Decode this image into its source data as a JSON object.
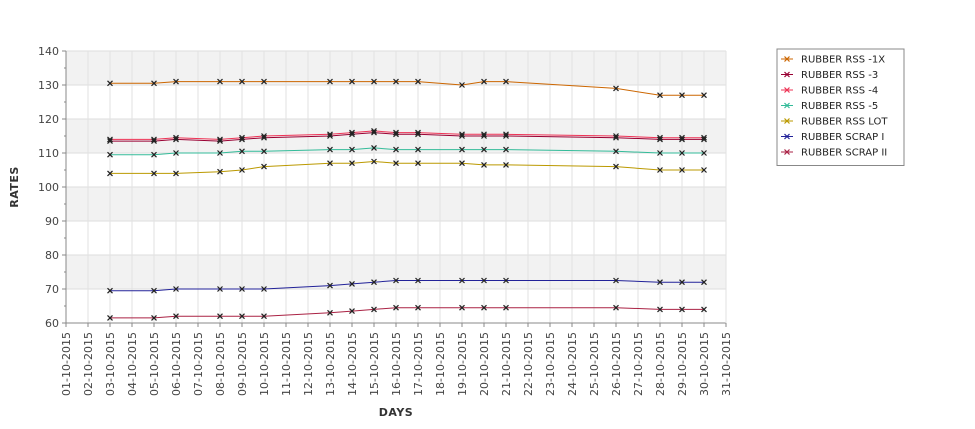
{
  "chart_data": {
    "type": "line",
    "title": "",
    "xlabel": "DAYS",
    "ylabel": "RATES",
    "ylim": [
      60,
      140
    ],
    "yticks": [
      60,
      70,
      80,
      90,
      100,
      110,
      120,
      130,
      140
    ],
    "x_tick_labels": [
      "01-10-2015",
      "02-10-2015",
      "03-10-2015",
      "04-10-2015",
      "05-10-2015",
      "06-10-2015",
      "07-10-2015",
      "08-10-2015",
      "09-10-2015",
      "10-10-2015",
      "11-10-2015",
      "12-10-2015",
      "13-10-2015",
      "14-10-2015",
      "15-10-2015",
      "16-10-2015",
      "17-10-2015",
      "18-10-2015",
      "19-10-2015",
      "20-10-2015",
      "21-10-2015",
      "22-10-2015",
      "23-10-2015",
      "24-10-2015",
      "25-10-2015",
      "26-10-2015",
      "27-10-2015",
      "28-10-2015",
      "29-10-2015",
      "30-10-2015",
      "31-10-2015"
    ],
    "x": [
      "03-10-2015",
      "05-10-2015",
      "06-10-2015",
      "08-10-2015",
      "09-10-2015",
      "10-10-2015",
      "13-10-2015",
      "14-10-2015",
      "15-10-2015",
      "16-10-2015",
      "17-10-2015",
      "19-10-2015",
      "20-10-2015",
      "21-10-2015",
      "26-10-2015",
      "28-10-2015",
      "29-10-2015",
      "30-10-2015"
    ],
    "grid": true,
    "legend_position": "top-right",
    "series": [
      {
        "name": "RUBBER RSS -1X",
        "color": "#cc6600",
        "values": [
          130.5,
          130.5,
          131,
          131,
          131,
          131,
          131,
          131,
          131,
          131,
          131,
          130,
          131,
          131,
          129,
          127,
          127,
          127
        ]
      },
      {
        "name": "RUBBER RSS -3",
        "color": "#990033",
        "values": [
          113.5,
          113.5,
          114,
          113.5,
          114,
          114.5,
          115,
          115.5,
          116,
          115.5,
          115.5,
          115,
          115,
          115,
          114.5,
          114,
          114,
          114
        ]
      },
      {
        "name": "RUBBER RSS -4",
        "color": "#ee3355",
        "values": [
          114,
          114,
          114.5,
          114,
          114.5,
          115,
          115.5,
          116,
          116.5,
          116,
          116,
          115.5,
          115.5,
          115.5,
          115,
          114.5,
          114.5,
          114.5
        ]
      },
      {
        "name": "RUBBER RSS -5",
        "color": "#33bb99",
        "values": [
          109.5,
          109.5,
          110,
          110,
          110.5,
          110.5,
          111,
          111,
          111.5,
          111,
          111,
          111,
          111,
          111,
          110.5,
          110,
          110,
          110
        ]
      },
      {
        "name": "RUBBER RSS LOT",
        "color": "#bb9900",
        "values": [
          104,
          104,
          104,
          104.5,
          105,
          106,
          107,
          107,
          107.5,
          107,
          107,
          107,
          106.5,
          106.5,
          106,
          105,
          105,
          105
        ]
      },
      {
        "name": "RUBBER SCRAP I",
        "color": "#222299",
        "values": [
          69.5,
          69.5,
          70,
          70,
          70,
          70,
          71,
          71.5,
          72,
          72.5,
          72.5,
          72.5,
          72.5,
          72.5,
          72.5,
          72,
          72,
          72
        ]
      },
      {
        "name": "RUBBER SCRAP II",
        "color": "#aa2244",
        "values": [
          61.5,
          61.5,
          62,
          62,
          62,
          62,
          63,
          63.5,
          64,
          64.5,
          64.5,
          64.5,
          64.5,
          64.5,
          64.5,
          64,
          64,
          64
        ]
      }
    ]
  }
}
